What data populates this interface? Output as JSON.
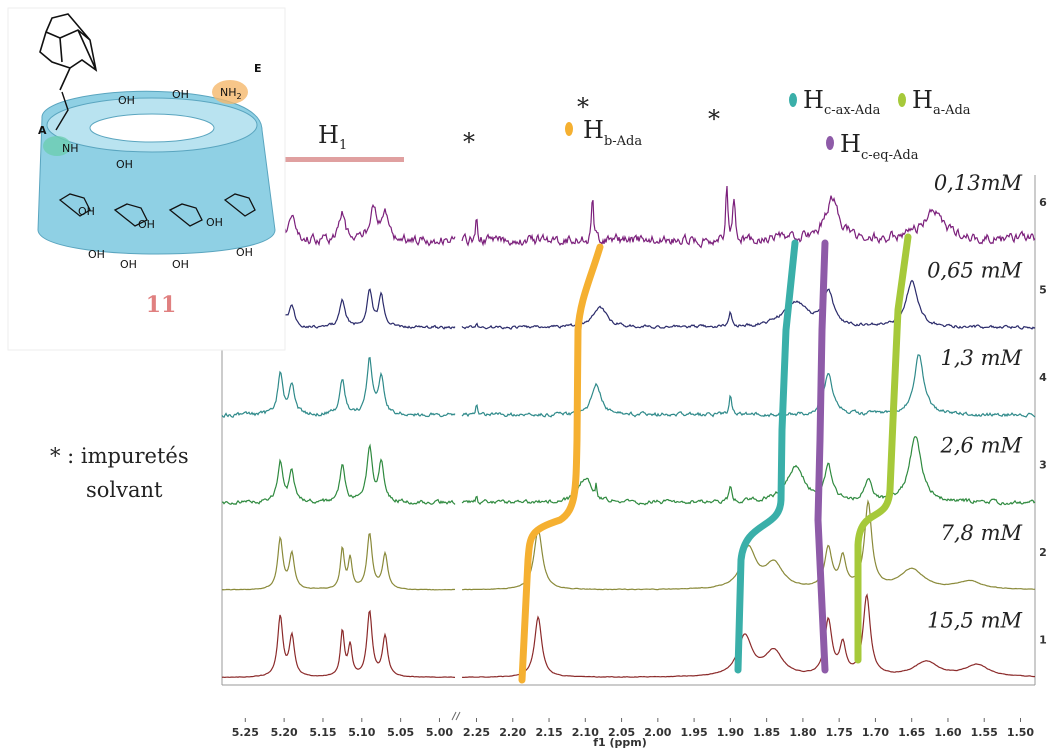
{
  "chart_data": {
    "type": "nmr",
    "xlabel": "f1 (ppm)",
    "segments": [
      {
        "xlim": [
          5.28,
          4.98
        ],
        "xticks": [
          5.25,
          {
            "value": 5.2,
            "label": "5.20"
          },
          5.15,
          {
            "value": 5.1,
            "label": "5.10"
          },
          5.05,
          {
            "value": 5.0,
            "label": "5.00"
          }
        ]
      },
      {
        "xlim": [
          2.27,
          1.48
        ],
        "xticks": [
          2.25,
          {
            "value": 2.2,
            "label": "2.20"
          },
          2.15,
          {
            "value": 2.1,
            "label": "2.10"
          },
          2.05,
          {
            "value": 2.0,
            "label": "2.00"
          },
          1.95,
          {
            "value": 1.9,
            "label": "1.90"
          },
          1.85,
          {
            "value": 1.8,
            "label": "1.80"
          },
          1.75,
          {
            "value": 1.7,
            "label": "1.70"
          },
          1.65,
          {
            "value": 1.6,
            "label": "1.60"
          },
          1.55,
          {
            "value": 1.5,
            "label": "1.50"
          }
        ]
      }
    ],
    "series": [
      {
        "name": "0,13mM",
        "index": 6,
        "color": "#7b1f7b",
        "noise": 5,
        "peaks": [
          5.205,
          5.19,
          5.125,
          5.085,
          5.07,
          2.25,
          2.09,
          1.905,
          1.895,
          1.76,
          1.62
        ],
        "heights": [
          30,
          25,
          28,
          38,
          28,
          25,
          45,
          55,
          40,
          40,
          25
        ],
        "widths": [
          0.004,
          0.004,
          0.004,
          0.005,
          0.004,
          0.001,
          0.0015,
          0.0015,
          0.002,
          0.012,
          0.02
        ]
      },
      {
        "name": "0,65 mM",
        "index": 5,
        "color": "#2b2b6b",
        "noise": 1.5,
        "peaks": [
          5.205,
          5.19,
          5.125,
          5.09,
          5.075,
          2.25,
          2.08,
          1.9,
          1.81,
          1.765,
          1.65
        ],
        "heights": [
          30,
          22,
          28,
          38,
          30,
          5,
          20,
          15,
          25,
          35,
          45
        ],
        "widths": [
          0.004,
          0.004,
          0.004,
          0.004,
          0.004,
          0.001,
          0.012,
          0.002,
          0.02,
          0.008,
          0.01
        ]
      },
      {
        "name": "1,3 mM",
        "index": 4,
        "color": "#2f8a8a",
        "noise": 2,
        "peaks": [
          5.205,
          5.19,
          5.125,
          5.09,
          5.075,
          2.25,
          2.085,
          1.9,
          1.765,
          1.64
        ],
        "heights": [
          40,
          30,
          35,
          55,
          40,
          12,
          30,
          20,
          40,
          60
        ],
        "widths": [
          0.004,
          0.004,
          0.004,
          0.004,
          0.004,
          0.001,
          0.008,
          0.002,
          0.008,
          0.008
        ]
      },
      {
        "name": "2,6 mM",
        "index": 3,
        "color": "#2f8a3f",
        "noise": 2,
        "peaks": [
          5.205,
          5.19,
          5.125,
          5.09,
          5.075,
          2.25,
          2.1,
          2.085,
          1.9,
          1.81,
          1.765,
          1.71,
          1.645
        ],
        "heights": [
          40,
          30,
          35,
          55,
          40,
          8,
          25,
          15,
          15,
          35,
          35,
          20,
          65
        ],
        "widths": [
          0.004,
          0.004,
          0.004,
          0.004,
          0.004,
          0.001,
          0.01,
          0.001,
          0.002,
          0.015,
          0.006,
          0.006,
          0.01
        ]
      },
      {
        "name": "7,8 mM",
        "index": 2,
        "color": "#8a8a3a",
        "noise": 0.3,
        "peaks": [
          5.205,
          5.19,
          5.125,
          5.115,
          5.09,
          5.07,
          2.165,
          1.875,
          1.84,
          1.765,
          1.745,
          1.71,
          1.65,
          1.57
        ],
        "heights": [
          50,
          35,
          40,
          30,
          55,
          35,
          60,
          40,
          25,
          40,
          30,
          85,
          20,
          8
        ],
        "widths": [
          0.004,
          0.004,
          0.003,
          0.003,
          0.004,
          0.004,
          0.007,
          0.012,
          0.015,
          0.006,
          0.005,
          0.006,
          0.02,
          0.02
        ]
      },
      {
        "name": "15,5 mM",
        "index": 1,
        "color": "#8b2a2a",
        "noise": 0.3,
        "peaks": [
          5.205,
          5.19,
          5.125,
          5.115,
          5.09,
          5.07,
          2.165,
          1.88,
          1.84,
          1.765,
          1.745,
          1.712,
          1.63,
          1.56
        ],
        "heights": [
          60,
          40,
          45,
          30,
          65,
          40,
          60,
          40,
          25,
          55,
          30,
          80,
          15,
          12
        ],
        "widths": [
          0.004,
          0.004,
          0.003,
          0.003,
          0.004,
          0.004,
          0.006,
          0.012,
          0.015,
          0.006,
          0.005,
          0.006,
          0.02,
          0.02
        ]
      }
    ],
    "annotations": {
      "h1": {
        "main": "H",
        "sub": "1"
      },
      "hb": {
        "main": "H",
        "sub": "b-Ada"
      },
      "hcax": {
        "main": "H",
        "sub": "c-ax-Ada"
      },
      "ha": {
        "main": "H",
        "sub": "a-Ada"
      },
      "hceq": {
        "main": "H",
        "sub": "c-eq-Ada"
      },
      "stars": [
        "*",
        "*",
        "*"
      ],
      "legend": [
        "* : impuretés",
        "solvant"
      ]
    },
    "molecule": {
      "number": "11",
      "labels": [
        "A",
        "E",
        "NH",
        "NH",
        "2",
        "OH",
        "OH",
        "OH",
        "OH",
        "OH",
        "OH",
        "OH",
        "OH",
        "OH",
        "OH"
      ]
    }
  }
}
